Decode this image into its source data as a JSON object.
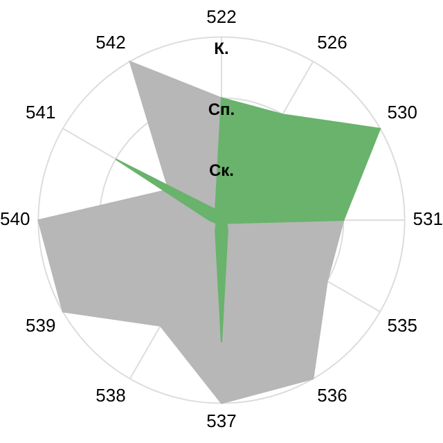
{
  "chart_data": {
    "type": "radar",
    "categories": [
      "522",
      "526",
      "530",
      "531",
      "535",
      "536",
      "537",
      "538",
      "539",
      "540",
      "541",
      "542"
    ],
    "series": [
      {
        "color": "#b7b7b7",
        "values": [
          2,
          null,
          null,
          2,
          2,
          3,
          3,
          2,
          3,
          3,
          1,
          3
        ]
      },
      {
        "color": "#69b36c",
        "values": [
          2,
          2,
          3,
          2,
          0.1,
          0.2,
          2,
          0.2,
          0.1,
          0.2,
          2,
          0.2
        ]
      }
    ],
    "ylim": [
      0,
      3
    ],
    "yticks": [
      {
        "value": 1,
        "label": "Ск."
      },
      {
        "value": 2,
        "label": "Сп."
      },
      {
        "value": 3,
        "label": "К."
      }
    ],
    "grid": true,
    "legend": false,
    "marker": "none"
  }
}
